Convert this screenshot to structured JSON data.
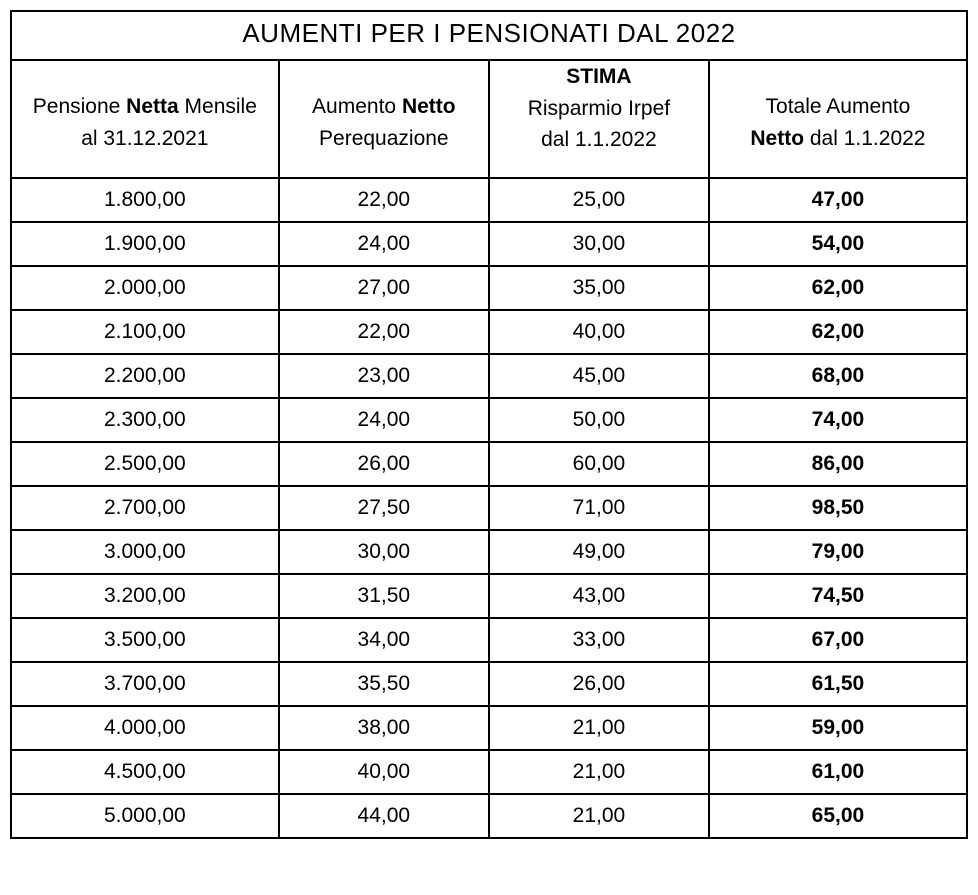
{
  "table": {
    "type": "table",
    "title": "AUMENTI PER I PENSIONATI  DAL 2022",
    "background_color": "#ffffff",
    "border_color": "#000000",
    "font_family": "Arial",
    "title_fontsize": 26,
    "header_fontsize": 21,
    "cell_fontsize": 21,
    "columns": [
      {
        "top_prefix": "Pensione ",
        "top_bold": "Netta",
        "top_suffix": " Mensile",
        "bottom": "al 31.12.2021",
        "width_pct": 28
      },
      {
        "top_prefix": "Aumento ",
        "top_bold": "Netto",
        "top_suffix": "",
        "bottom": "Perequazione",
        "width_pct": 22
      },
      {
        "pre_bold": "STIMA",
        "top_prefix": "Risparmio Irpef",
        "top_bold": "",
        "top_suffix": "",
        "bottom": "dal 1.1.2022",
        "width_pct": 23
      },
      {
        "top_prefix": "Totale Aumento",
        "top_bold": "",
        "top_suffix": "",
        "bottom_bold": "Netto",
        "bottom_suffix": " dal 1.1.2022",
        "width_pct": 27
      }
    ],
    "rows": [
      [
        "1.800,00",
        "22,00",
        "25,00",
        "47,00"
      ],
      [
        "1.900,00",
        "24,00",
        "30,00",
        "54,00"
      ],
      [
        "2.000,00",
        "27,00",
        "35,00",
        "62,00"
      ],
      [
        "2.100,00",
        "22,00",
        "40,00",
        "62,00"
      ],
      [
        "2.200,00",
        "23,00",
        "45,00",
        "68,00"
      ],
      [
        "2.300,00",
        "24,00",
        "50,00",
        "74,00"
      ],
      [
        "2.500,00",
        "26,00",
        "60,00",
        "86,00"
      ],
      [
        "2.700,00",
        "27,50",
        "71,00",
        "98,50"
      ],
      [
        "3.000,00",
        "30,00",
        "49,00",
        "79,00"
      ],
      [
        "3.200,00",
        "31,50",
        "43,00",
        "74,50"
      ],
      [
        "3.500,00",
        "34,00",
        "33,00",
        "67,00"
      ],
      [
        "3.700,00",
        "35,50",
        "26,00",
        "61,50"
      ],
      [
        "4.000,00",
        "38,00",
        "21,00",
        "59,00"
      ],
      [
        "4.500,00",
        "40,00",
        "21,00",
        "61,00"
      ],
      [
        "5.000,00",
        "44,00",
        "21,00",
        "65,00"
      ]
    ],
    "last_column_bold": true
  }
}
